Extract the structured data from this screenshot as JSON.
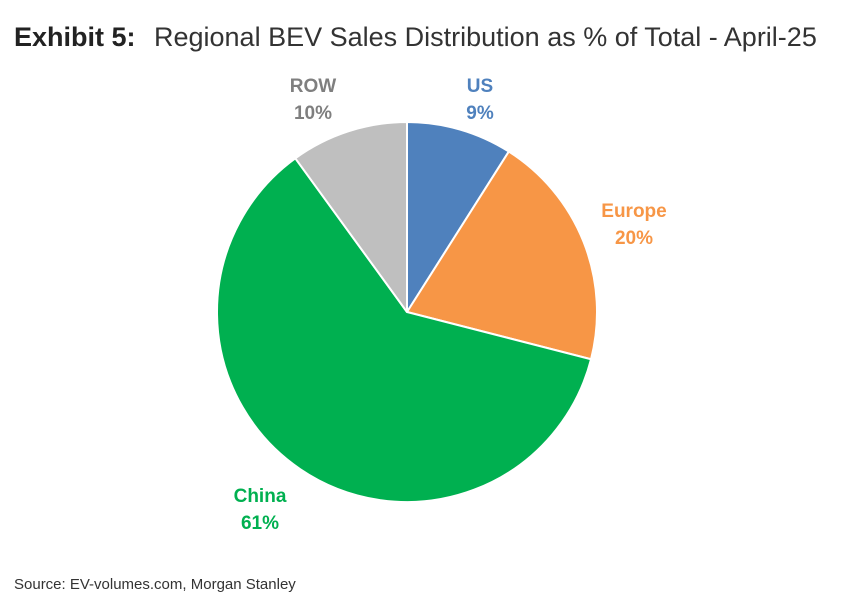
{
  "header": {
    "exhibit": "Exhibit 5:",
    "title": "Regional BEV Sales Distribution as % of Total - April-25"
  },
  "chart_data": {
    "type": "pie",
    "title": "Regional BEV Sales Distribution as % of Total - April-25",
    "slices": [
      {
        "name": "US",
        "value": 9,
        "label": "9%",
        "color": "#4F81BD"
      },
      {
        "name": "Europe",
        "value": 20,
        "label": "20%",
        "color": "#F79646"
      },
      {
        "name": "China",
        "value": 61,
        "label": "61%",
        "color": "#00B050"
      },
      {
        "name": "ROW",
        "value": 10,
        "label": "10%",
        "color": "#BFBFBF"
      }
    ],
    "start": "12 o'clock",
    "direction": "clockwise",
    "legend": "none (labels outside slices)"
  },
  "footer": {
    "source": "Source: EV-volumes.com, Morgan Stanley"
  }
}
